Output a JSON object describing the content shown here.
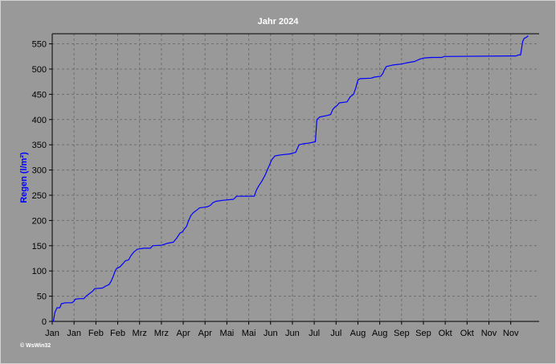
{
  "chart_data": {
    "type": "line",
    "title": "Jahr 2024",
    "ylabel": "Regen (l/m²)",
    "xlabel": "",
    "ylim": [
      0,
      570
    ],
    "yticks": [
      0,
      50,
      100,
      150,
      200,
      250,
      300,
      350,
      400,
      450,
      500,
      550
    ],
    "xtick_labels": [
      "Jan",
      "Jan",
      "Feb",
      "Feb",
      "Mrz",
      "Mrz",
      "Apr",
      "Apr",
      "Mai",
      "Mai",
      "Jun",
      "Jun",
      "Jul",
      "Jul",
      "Aug",
      "Aug",
      "Sep",
      "Sep",
      "Okt",
      "Okt",
      "Nov",
      "Nov"
    ],
    "xlim": [
      0,
      22.3
    ],
    "grid": true,
    "colors": {
      "background": "#999999",
      "line": "#0000ff",
      "title": "#ffffff",
      "ylabel": "#0000ff"
    },
    "series": [
      {
        "values": [
          [
            0,
            0
          ],
          [
            0.05,
            0
          ],
          [
            0.12,
            18
          ],
          [
            0.22,
            27
          ],
          [
            0.35,
            27
          ],
          [
            0.42,
            35
          ],
          [
            0.6,
            37
          ],
          [
            0.9,
            37
          ],
          [
            1.0,
            40
          ],
          [
            1.05,
            44
          ],
          [
            1.25,
            45
          ],
          [
            1.45,
            45
          ],
          [
            1.55,
            50
          ],
          [
            1.7,
            55
          ],
          [
            1.85,
            60
          ],
          [
            1.95,
            65
          ],
          [
            2.3,
            66
          ],
          [
            2.45,
            70
          ],
          [
            2.6,
            73
          ],
          [
            2.7,
            80
          ],
          [
            2.8,
            90
          ],
          [
            2.88,
            100
          ],
          [
            2.95,
            105
          ],
          [
            3.1,
            108
          ],
          [
            3.25,
            115
          ],
          [
            3.35,
            120
          ],
          [
            3.5,
            122
          ],
          [
            3.6,
            130
          ],
          [
            3.75,
            138
          ],
          [
            3.9,
            143
          ],
          [
            4.2,
            145
          ],
          [
            4.5,
            145
          ],
          [
            4.6,
            150
          ],
          [
            5.0,
            151
          ],
          [
            5.15,
            153
          ],
          [
            5.3,
            155
          ],
          [
            5.55,
            157
          ],
          [
            5.7,
            165
          ],
          [
            5.85,
            175
          ],
          [
            5.95,
            177
          ],
          [
            6.05,
            183
          ],
          [
            6.15,
            188
          ],
          [
            6.25,
            200
          ],
          [
            6.35,
            210
          ],
          [
            6.45,
            215
          ],
          [
            6.6,
            220
          ],
          [
            6.75,
            225
          ],
          [
            7.1,
            227
          ],
          [
            7.25,
            230
          ],
          [
            7.35,
            235
          ],
          [
            7.5,
            238
          ],
          [
            7.8,
            240
          ],
          [
            8.3,
            242
          ],
          [
            8.45,
            248
          ],
          [
            9.25,
            248
          ],
          [
            9.35,
            260
          ],
          [
            9.45,
            268
          ],
          [
            9.6,
            278
          ],
          [
            9.75,
            290
          ],
          [
            9.85,
            300
          ],
          [
            9.95,
            310
          ],
          [
            10.05,
            320
          ],
          [
            10.2,
            328
          ],
          [
            10.5,
            330
          ],
          [
            10.9,
            332
          ],
          [
            11.15,
            335
          ],
          [
            11.3,
            350
          ],
          [
            11.5,
            352
          ],
          [
            11.7,
            353
          ],
          [
            11.95,
            355
          ],
          [
            12.05,
            356
          ],
          [
            12.12,
            400
          ],
          [
            12.25,
            405
          ],
          [
            12.6,
            408
          ],
          [
            12.75,
            410
          ],
          [
            12.85,
            420
          ],
          [
            12.95,
            425
          ],
          [
            13.05,
            428
          ],
          [
            13.15,
            433
          ],
          [
            13.5,
            435
          ],
          [
            13.65,
            445
          ],
          [
            13.8,
            450
          ],
          [
            13.9,
            462
          ],
          [
            14.0,
            478
          ],
          [
            14.1,
            481
          ],
          [
            14.6,
            482
          ],
          [
            14.75,
            484
          ],
          [
            15.05,
            486
          ],
          [
            15.15,
            492
          ],
          [
            15.2,
            498
          ],
          [
            15.3,
            505
          ],
          [
            15.6,
            508
          ],
          [
            16.0,
            510
          ],
          [
            16.2,
            512
          ],
          [
            16.6,
            515
          ],
          [
            16.85,
            520
          ],
          [
            17.05,
            522
          ],
          [
            17.4,
            523
          ],
          [
            17.85,
            523
          ],
          [
            17.95,
            525
          ],
          [
            21.0,
            526
          ],
          [
            21.25,
            526
          ],
          [
            21.35,
            528
          ],
          [
            21.45,
            528
          ],
          [
            21.5,
            542
          ],
          [
            21.55,
            555
          ],
          [
            21.62,
            561
          ],
          [
            21.72,
            563
          ],
          [
            21.8,
            566
          ]
        ]
      }
    ]
  },
  "watermark": "© WsWin32"
}
